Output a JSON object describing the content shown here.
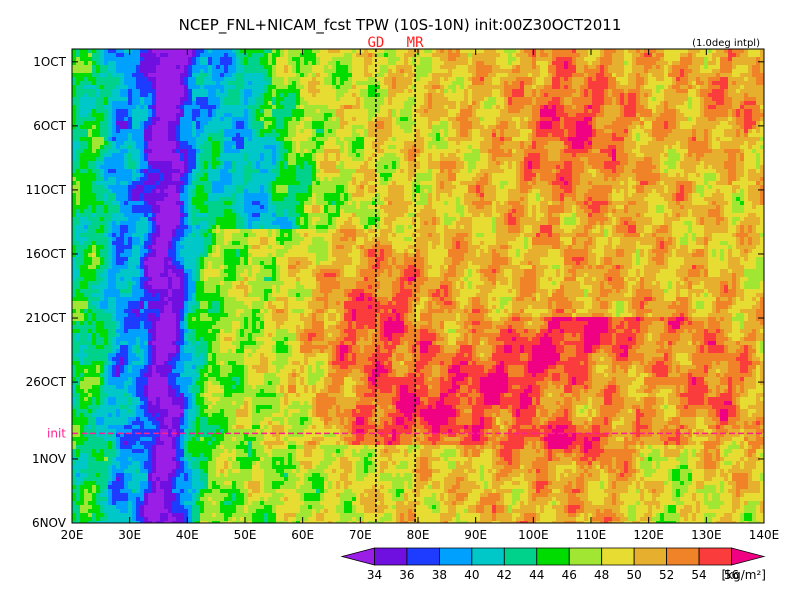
{
  "chart_data": {
    "type": "heatmap",
    "title": "NCEP_FNL+NICAM_fcst TPW (10S-10N) init:00Z30OCT2011",
    "note": "(1.0deg intpl)",
    "x_ticks": [
      "20E",
      "30E",
      "40E",
      "50E",
      "60E",
      "70E",
      "80E",
      "90E",
      "100E",
      "110E",
      "120E",
      "130E",
      "140E"
    ],
    "x_range": [
      20,
      140
    ],
    "y_ticks": [
      "1OCT",
      "6OCT",
      "11OCT",
      "16OCT",
      "21OCT",
      "26OCT",
      "1NOV",
      "6NOV"
    ],
    "y_tick_days": [
      1,
      6,
      11,
      16,
      21,
      26,
      32,
      37
    ],
    "y_range": [
      0,
      37
    ],
    "init_label": "init",
    "init_day": 30,
    "markers": [
      {
        "label": "GD",
        "lon": 72.7
      },
      {
        "label": "MR",
        "lon": 79.5
      }
    ],
    "colorbar": {
      "levels": [
        "34",
        "36",
        "38",
        "40",
        "42",
        "44",
        "46",
        "48",
        "50",
        "52",
        "54",
        "56"
      ],
      "unit": "[kg/m²]",
      "colors": [
        "#9a1ee6",
        "#7010e0",
        "#1e3cff",
        "#00a0ff",
        "#00c8c8",
        "#00d28c",
        "#00dc00",
        "#a0e632",
        "#e6dc32",
        "#e6af2d",
        "#f08228",
        "#fa3c3c",
        "#f00082"
      ]
    }
  }
}
